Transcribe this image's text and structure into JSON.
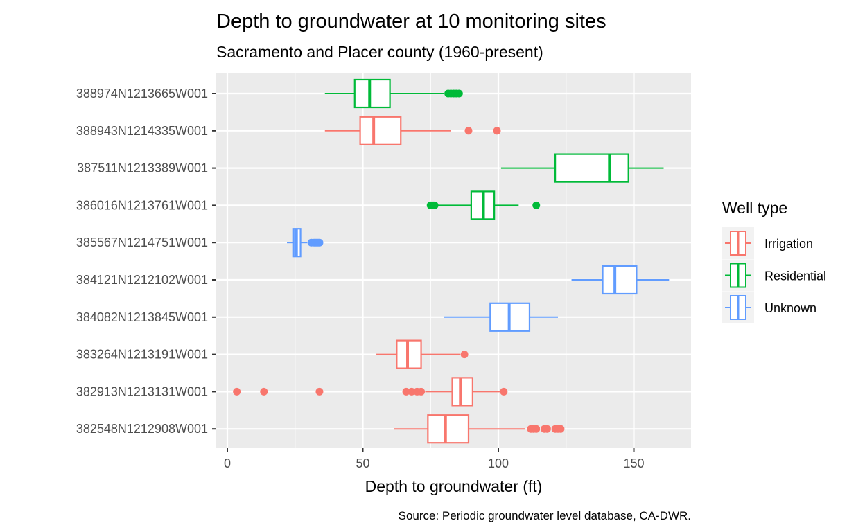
{
  "chart_data": {
    "type": "boxplot",
    "orientation": "horizontal",
    "title": "Depth to groundwater at 10 monitoring sites",
    "subtitle": "Sacramento and Placer county (1960-present)",
    "xlabel": "Depth to groundwater (ft)",
    "ylabel": "",
    "caption": "Source: Periodic groundwater level database, CA-DWR.",
    "xlim": [
      -4,
      171
    ],
    "xticks": [
      0,
      50,
      100,
      150
    ],
    "grid": true,
    "legend": {
      "title": "Well type",
      "position": "right",
      "entries": [
        {
          "name": "Irrigation",
          "color": "#F8766D"
        },
        {
          "name": "Residential",
          "color": "#00BA38"
        },
        {
          "name": "Unknown",
          "color": "#619CFF"
        }
      ]
    },
    "sites": [
      {
        "id": "388974N1213665W001",
        "type": "Residential",
        "whisker_low": 36,
        "q1": 47,
        "median": 52.5,
        "q3": 60,
        "whisker_high": 80,
        "outliers": [
          81.5,
          82.5,
          83.5,
          84.5,
          85.5
        ]
      },
      {
        "id": "388943N1214335W001",
        "type": "Irrigation",
        "whisker_low": 36,
        "q1": 49,
        "median": 54,
        "q3": 64,
        "whisker_high": 82.5,
        "outliers": [
          89,
          99.5
        ]
      },
      {
        "id": "387511N1213389W001",
        "type": "Residential",
        "whisker_low": 101,
        "q1": 121,
        "median": 141,
        "q3": 148,
        "whisker_high": 161,
        "outliers": []
      },
      {
        "id": "386016N1213761W001",
        "type": "Residential",
        "whisker_low": 77,
        "q1": 90,
        "median": 94.5,
        "q3": 98.5,
        "whisker_high": 107.5,
        "outliers": [
          75,
          75.5,
          76,
          76.5,
          114
        ]
      },
      {
        "id": "385567N1214751W001",
        "type": "Unknown",
        "whisker_low": 22,
        "q1": 24.5,
        "median": 25.5,
        "q3": 27,
        "whisker_high": 29.5,
        "outliers": [
          31,
          32,
          32.5,
          33,
          33.5,
          34
        ]
      },
      {
        "id": "384121N1212102W001",
        "type": "Unknown",
        "whisker_low": 127,
        "q1": 138.5,
        "median": 143,
        "q3": 151,
        "whisker_high": 163,
        "outliers": []
      },
      {
        "id": "384082N1213845W001",
        "type": "Unknown",
        "whisker_low": 80,
        "q1": 97,
        "median": 104,
        "q3": 111.5,
        "whisker_high": 122,
        "outliers": []
      },
      {
        "id": "383264N1213191W001",
        "type": "Irrigation",
        "whisker_low": 55,
        "q1": 62.5,
        "median": 66.5,
        "q3": 71.5,
        "whisker_high": 86,
        "outliers": [
          87.5
        ]
      },
      {
        "id": "382913N1213131W001",
        "type": "Irrigation",
        "whisker_low": 73,
        "q1": 83,
        "median": 86,
        "q3": 90.5,
        "whisker_high": 101,
        "outliers": [
          3.5,
          13.5,
          34,
          66,
          68,
          70,
          71.5,
          102
        ]
      },
      {
        "id": "382548N1212908W001",
        "type": "Irrigation",
        "whisker_low": 61.5,
        "q1": 74,
        "median": 80.5,
        "q3": 89,
        "whisker_high": 110,
        "outliers": [
          112,
          113,
          114,
          117,
          118,
          121,
          122,
          123
        ]
      }
    ]
  }
}
